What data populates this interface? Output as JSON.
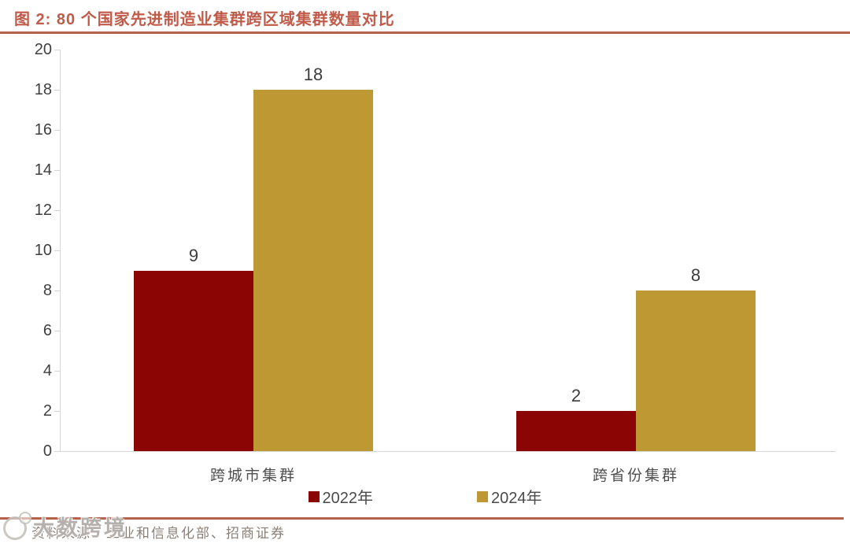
{
  "title": "图 2:  80 个国家先进制造业集群跨区域集群数量对比",
  "chart_data": {
    "type": "bar",
    "title": "80 个国家先进制造业集群跨区域集群数量对比",
    "categories": [
      "跨城市集群",
      "跨省份集群"
    ],
    "series": [
      {
        "name": "2022年",
        "color": "#8b0505",
        "values": [
          9,
          2
        ]
      },
      {
        "name": "2024年",
        "color": "#be9933",
        "values": [
          18,
          8
        ]
      }
    ],
    "value_labels": [
      [
        "9",
        "18"
      ],
      [
        "2",
        "8"
      ]
    ],
    "ylim": [
      0,
      20
    ],
    "ytick_step": 2,
    "yticks": [
      0,
      2,
      4,
      6,
      8,
      10,
      12,
      14,
      16,
      18,
      20
    ],
    "grid": false,
    "legend_position": "bottom"
  },
  "source_note": "资料来源：工业和信息化部、招商证券",
  "watermark": {
    "text": "大数跨境"
  },
  "colors": {
    "series_2022": "#8b0505",
    "series_2024": "#be9933",
    "title_text": "#c05a49",
    "rule": "#b5614b",
    "axis": "#d6d6d6",
    "tick_label": "#3f3f3f"
  }
}
